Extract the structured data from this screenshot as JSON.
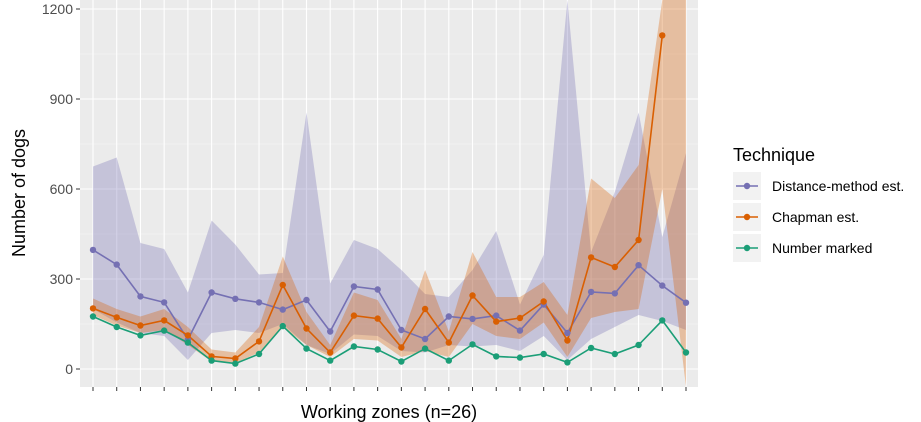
{
  "chart_data": {
    "type": "line",
    "title": "",
    "xlabel": "Working zones (n=26)",
    "ylabel": "Number of dogs",
    "ylim": [
      -60,
      1230
    ],
    "yticks": [
      0,
      300,
      600,
      900,
      1200
    ],
    "x": [
      1,
      2,
      3,
      4,
      5,
      6,
      7,
      8,
      9,
      10,
      11,
      12,
      13,
      14,
      15,
      16,
      17,
      18,
      19,
      20,
      21,
      22,
      23,
      24,
      25,
      26
    ],
    "grid": true,
    "legend_position": "right",
    "legend_title": "Technique",
    "series": [
      {
        "name": "Distance-method est.",
        "color": "#7570b3",
        "values": [
          397,
          348,
          242,
          222,
          98,
          255,
          234,
          222,
          198,
          230,
          125,
          275,
          265,
          130,
          100,
          175,
          167,
          178,
          128,
          215,
          120,
          257,
          252,
          346,
          278,
          221
        ],
        "lower": [
          200,
          155,
          120,
          110,
          30,
          120,
          130,
          120,
          150,
          80,
          50,
          115,
          110,
          60,
          55,
          80,
          75,
          80,
          60,
          110,
          30,
          100,
          140,
          180,
          160,
          130
        ],
        "upper": [
          675,
          705,
          420,
          400,
          255,
          495,
          415,
          315,
          320,
          855,
          285,
          430,
          400,
          330,
          250,
          240,
          330,
          460,
          215,
          380,
          1230,
          390,
          590,
          855,
          440,
          720
        ]
      },
      {
        "name": "Chapman est.",
        "color": "#d95f02",
        "values": [
          202,
          172,
          145,
          162,
          112,
          42,
          35,
          92,
          280,
          135,
          55,
          178,
          168,
          72,
          200,
          88,
          245,
          158,
          170,
          225,
          95,
          372,
          340,
          430,
          1112,
          null
        ],
        "lower": [
          180,
          145,
          120,
          130,
          80,
          25,
          20,
          55,
          140,
          80,
          40,
          100,
          95,
          40,
          60,
          40,
          150,
          110,
          100,
          155,
          40,
          170,
          190,
          200,
          600,
          -60
        ],
        "upper": [
          235,
          200,
          175,
          200,
          140,
          65,
          55,
          140,
          375,
          190,
          80,
          255,
          230,
          100,
          330,
          125,
          390,
          240,
          240,
          290,
          180,
          635,
          570,
          680,
          1230,
          1230
        ]
      },
      {
        "name": "Number marked",
        "color": "#1b9e77",
        "values": [
          175,
          140,
          112,
          128,
          88,
          28,
          18,
          50,
          143,
          68,
          28,
          75,
          65,
          25,
          68,
          28,
          82,
          42,
          38,
          50,
          22,
          70,
          50,
          80,
          162,
          55
        ]
      }
    ]
  }
}
